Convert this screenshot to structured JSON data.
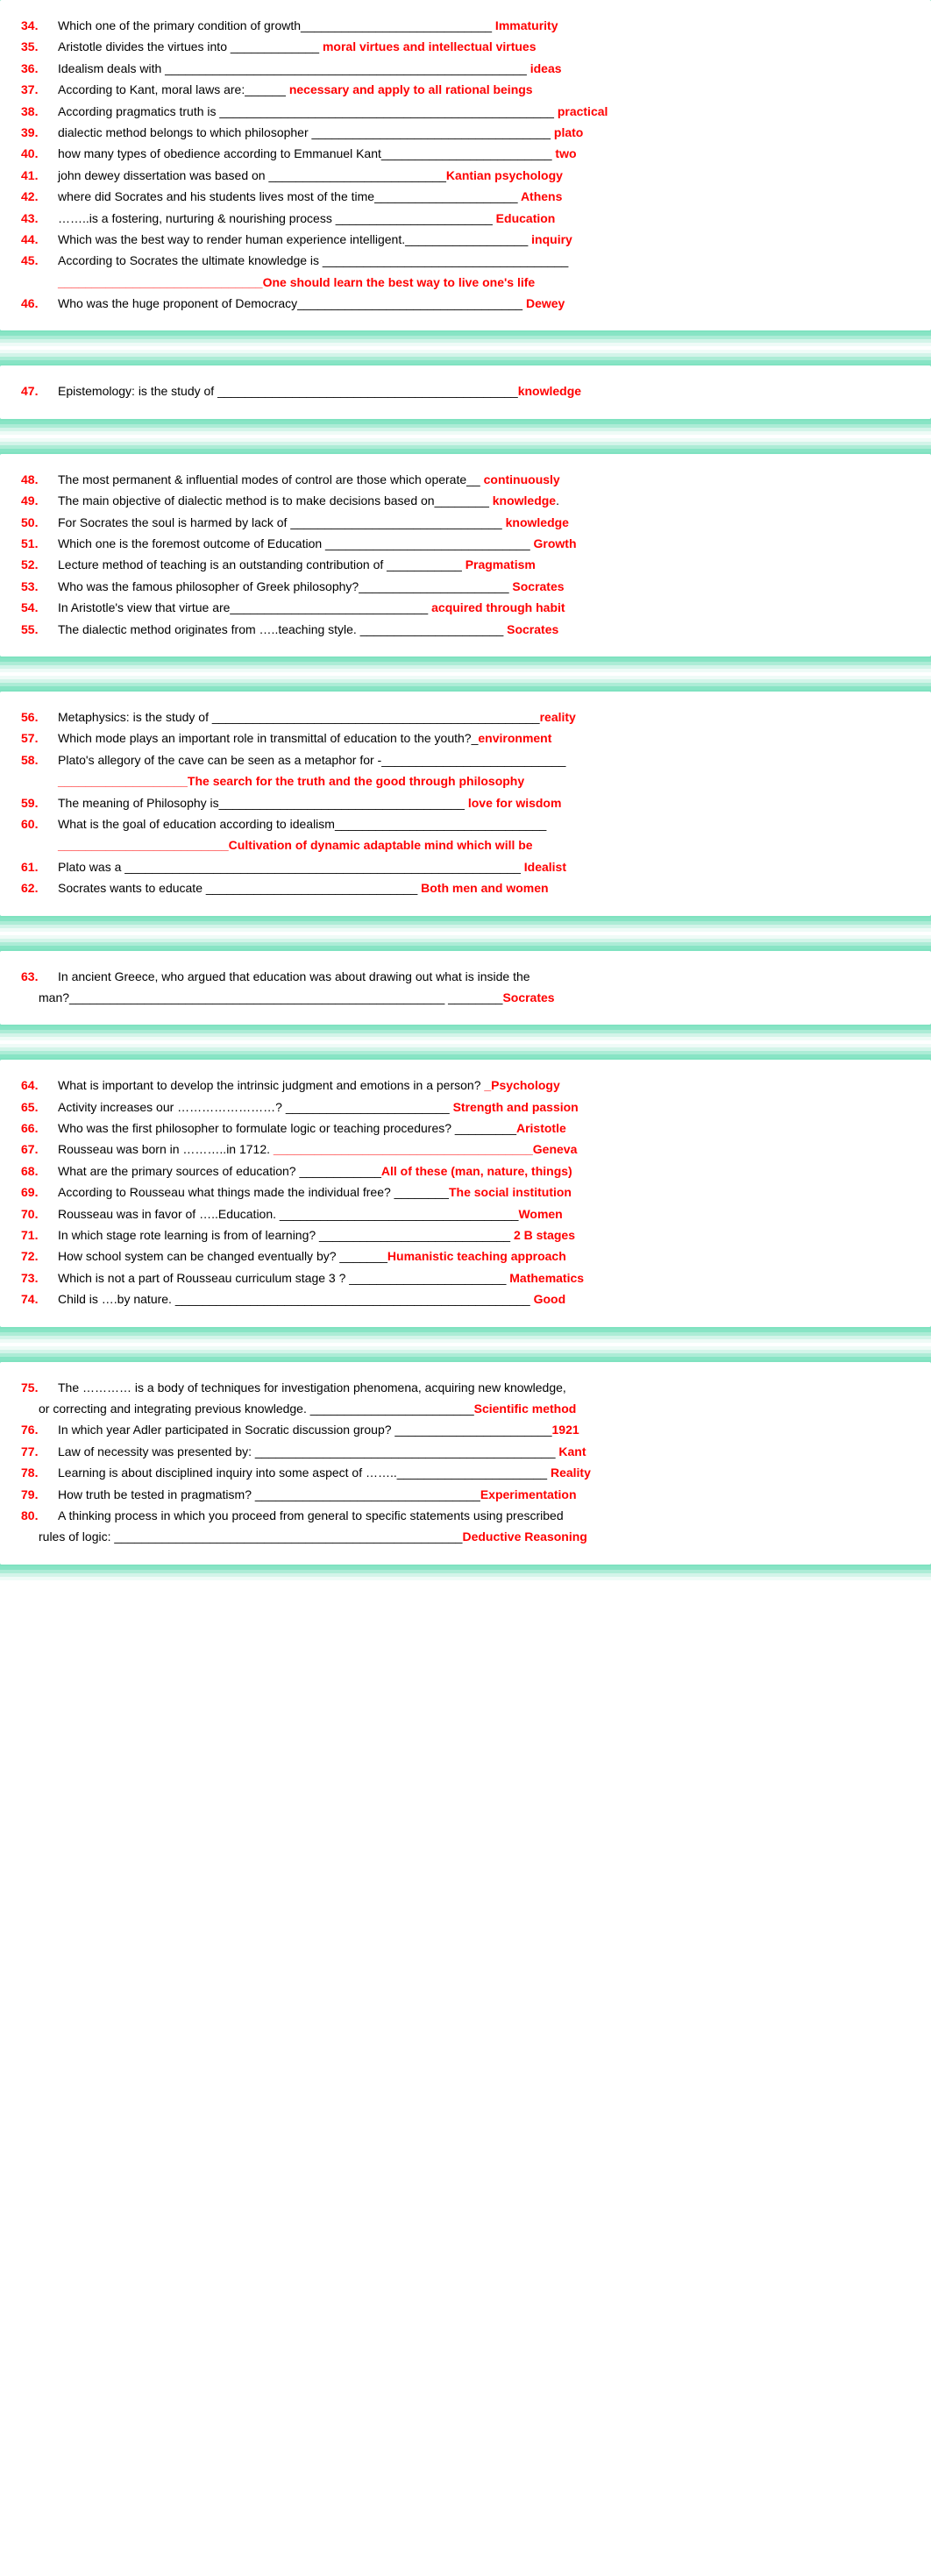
{
  "sections": [
    {
      "items": [
        {
          "num": "34.",
          "q": "Which one of the primary condition of growth____________________________",
          "a": " Immaturity"
        },
        {
          "num": "35.",
          "q": "Aristotle divides the virtues into _____________",
          "a": " moral virtues and intellectual virtues"
        },
        {
          "num": "36.",
          "q": "Idealism deals with _____________________________________________________",
          "a": " ideas"
        },
        {
          "num": "37.",
          "q": "According to Kant, moral laws are:______",
          "a": " necessary and apply to all rational beings"
        },
        {
          "num": "38.",
          "q": "According pragmatics truth is _________________________________________________",
          "a": " practical"
        },
        {
          "num": "39.",
          "q": "dialectic method belongs to which philosopher ___________________________________",
          "a": " plato"
        },
        {
          "num": "40.",
          "q": "how many types of obedience according to Emmanuel Kant_________________________",
          "a": " two"
        },
        {
          "num": "41.",
          "q": "john dewey dissertation was based on __________________________",
          "a": "Kantian psychology"
        },
        {
          "num": "42.",
          "q": "where did Socrates and his students lives most of the time_____________________",
          "a": " Athens"
        },
        {
          "num": "43.",
          "q": "……..is a fostering, nurturing & nourishing process _______________________",
          "a": " Education"
        },
        {
          "num": "44.",
          "q": "Which was the best way to render human experience intelligent.__________________",
          "a": " inquiry"
        },
        {
          "num": "45.",
          "q": "According to Socrates the ultimate knowledge is ____________________________________",
          "a": "",
          "cont": "______________________________One should learn the best way to live one's life"
        },
        {
          "num": "46.",
          "q": "Who was the huge proponent of Democracy_________________________________",
          "a": " Dewey"
        }
      ]
    },
    {
      "items": [
        {
          "num": "47.",
          "q": "Epistemology: is the study of ____________________________________________",
          "a": "knowledge"
        }
      ]
    },
    {
      "items": [
        {
          "num": "48.",
          "q": "The most permanent & influential modes of control are those which operate__",
          "a": " continuously"
        },
        {
          "num": "49.",
          "q": "The main  objective of dialectic method is to make decisions based on________",
          "a": " knowledge",
          "suffix": "."
        },
        {
          "num": "50.",
          "q": "For Socrates the soul is harmed by lack of _______________________________",
          "a": " knowledge"
        },
        {
          "num": "51.",
          "q": "Which one is the foremost outcome of Education ______________________________",
          "a": " Growth"
        },
        {
          "num": "52.",
          "q": "Lecture method of teaching is an outstanding contribution of ___________ ",
          "a": " Pragmatism"
        },
        {
          "num": "53.",
          "q": "Who was the famous philosopher of Greek philosophy?______________________",
          "a": " Socrates"
        },
        {
          "num": "54.",
          "q": "In Aristotle's view that virtue are_____________________________",
          "a": " acquired through habit"
        },
        {
          "num": "55.",
          "q": "The dialectic method originates from …..teaching style. _____________________",
          "a": " Socrates"
        }
      ]
    },
    {
      "items": [
        {
          "num": "56.",
          "q": "Metaphysics: is the study of ________________________________________________",
          "a": "reality"
        },
        {
          "num": "57.",
          "q": "Which mode plays an important role in transmittal of education to the youth?_",
          "a": "environment"
        },
        {
          "num": "58.",
          "q": "Plato's allegory of the cave can be seen as a metaphor for -___________________________",
          "a": "",
          "cont": "___________________The search for the truth and the good through philosophy"
        },
        {
          "num": "59.",
          "q": "The meaning of Philosophy is____________________________________",
          "a": " love for wisdom"
        },
        {
          "num": "60.",
          "q": "What is the goal of education according to idealism_______________________________",
          "a": "",
          "cont": "_________________________Cultivation of dynamic adaptable mind which will be"
        },
        {
          "num": "61.",
          "q": "Plato was a __________________________________________________________",
          "a": " Idealist"
        },
        {
          "num": "62.",
          "q": "Socrates wants to educate _______________________________ ",
          "a": " Both men and women"
        }
      ]
    },
    {
      "items": [
        {
          "num": "63.",
          "q": " In ancient Greece, who argued that education was about drawing out what is inside the",
          "a": "",
          "cont2": "man?_______________________________________________________   ________Socrates",
          "cont2ans": "Socrates"
        }
      ]
    },
    {
      "items": [
        {
          "num": "64.",
          "q": "What is important to develop the intrinsic judgment and emotions in a person?   ",
          "a": "_Psychology"
        },
        {
          "num": "65.",
          "q": "Activity increases our ……………………?     ________________________",
          "a": " Strength and passion"
        },
        {
          "num": "66.",
          "q": "Who was the first philosopher to formulate logic or teaching procedures? _________",
          "a": "Aristotle"
        },
        {
          "num": "67.",
          "q": "Rousseau was born in ………..in 1712. ",
          "a": "______________________________________Geneva"
        },
        {
          "num": "68.",
          "q": "What are the primary sources of education? ____________",
          "a": "All of these (man, nature, things)"
        },
        {
          "num": "69.",
          "q": "According to Rousseau what things made the individual free? ________",
          "a": "The social institution"
        },
        {
          "num": "70.",
          "q": "Rousseau was in favor of …..Education. ___________________________________",
          "a": "Women"
        },
        {
          "num": "71.",
          "q": "In which stage rote learning is from of learning?  ____________________________",
          "a": " 2 B stages"
        },
        {
          "num": "72.",
          "q": "How school system can be changed eventually by?   _______",
          "a": "Humanistic teaching approach"
        },
        {
          "num": "73.",
          "q": "Which is not a part of Rousseau curriculum stage 3 ?   _______________________",
          "a": " Mathematics"
        },
        {
          "num": "74.",
          "q": "Child is ….by nature. ____________________________________________________",
          "a": " Good"
        }
      ]
    },
    {
      "items": [
        {
          "num": "75.",
          "q": " The ………… is a body of techniques for investigation phenomena, acquiring new knowledge,",
          "a": "",
          "cont2": "or correcting and integrating previous knowledge. ________________________",
          "cont2ans": "Scientific method"
        },
        {
          "num": "76.",
          "q": " In which year Adler participated in Socratic discussion group? _______________________",
          "a": "1921"
        },
        {
          "num": "77.",
          "q": " Law of necessity was presented by:  ____________________________________________",
          "a": " Kant"
        },
        {
          "num": "78.",
          "q": " Learning is about disciplined inquiry into some aspect of ……..______________________",
          "a": " Reality"
        },
        {
          "num": "79.",
          "q": " How truth be tested in pragmatism? _________________________________",
          "a": "Experimentation"
        },
        {
          "num": "80.",
          "q": " A thinking process in which you proceed from general to specific statements using prescribed",
          "a": "",
          "cont2": "rules of logic: ___________________________________________________",
          "cont2ans": "Deductive Reasoning"
        }
      ]
    }
  ]
}
